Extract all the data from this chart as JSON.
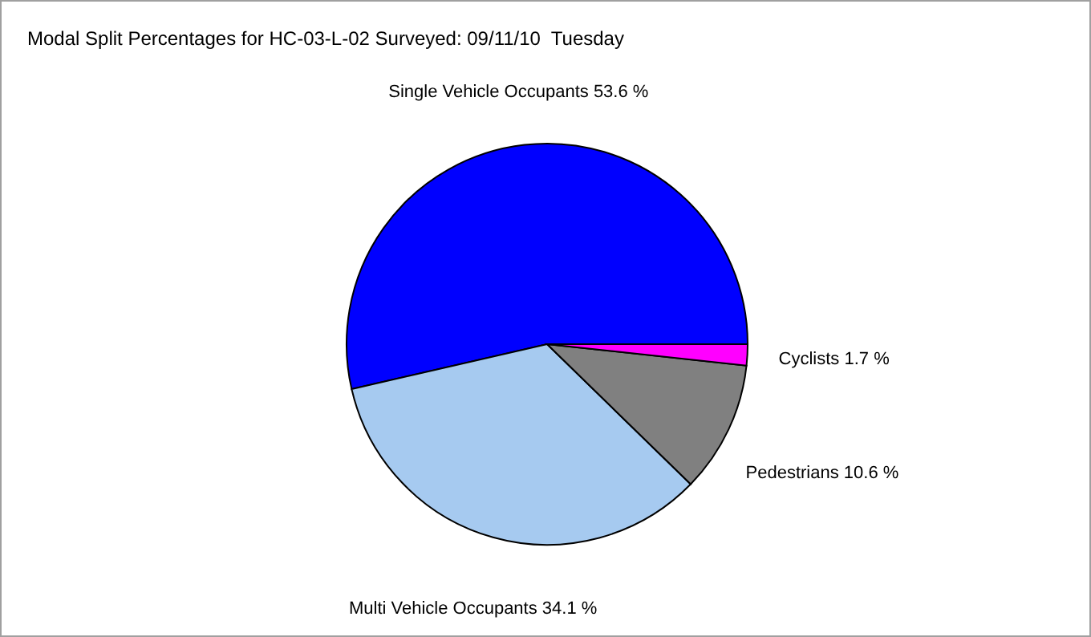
{
  "chart_data": {
    "type": "pie",
    "title": "Modal Split Percentages for HC-03-L-02 Surveyed: 09/11/10  Tuesday",
    "categories": [
      "Single Vehicle Occupants",
      "Multi Vehicle Occupants",
      "Pedestrians",
      "Cyclists"
    ],
    "values": [
      53.6,
      34.1,
      10.6,
      1.7
    ],
    "value_labels": [
      "53.6 %",
      "34.1 %",
      "10.6 %",
      "1.7 %"
    ],
    "colors": [
      "#0000ff",
      "#a6caf0",
      "#808080",
      "#ff00ff"
    ],
    "legend": false
  }
}
